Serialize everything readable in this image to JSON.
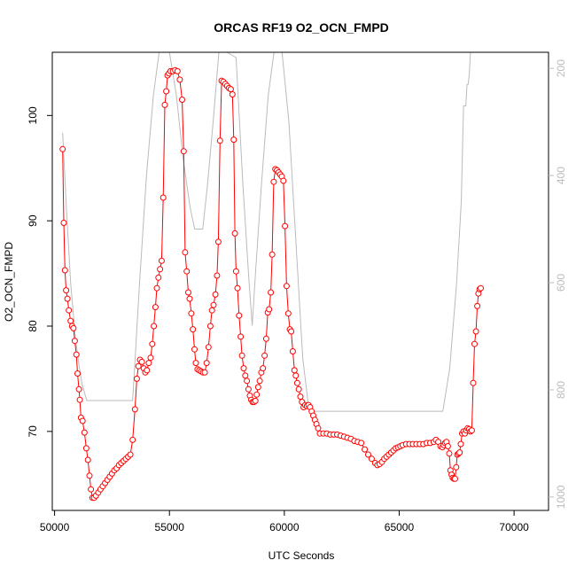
{
  "chart_data": {
    "type": "line",
    "title": "ORCAS RF19 O2_OCN_FMPD",
    "xlabel": "UTC Seconds",
    "ylabel": "O2_OCN_FMPD",
    "xlim": [
      49900,
      71500
    ],
    "ylim": [
      62.5,
      106
    ],
    "y2lim": [
      1025,
      170
    ],
    "x_ticks": [
      50000,
      55000,
      60000,
      65000,
      70000
    ],
    "y_ticks": [
      70,
      80,
      90,
      100
    ],
    "y2_ticks": [
      200,
      400,
      600,
      800,
      1000
    ],
    "colors": {
      "primary": "#ff0000",
      "secondary": "#bbbbbb",
      "axis": "#000000"
    },
    "series": [
      {
        "role": "primary",
        "points": [
          [
            50350,
            96.8
          ],
          [
            50400,
            89.8
          ],
          [
            50450,
            85.3
          ],
          [
            50500,
            83.4
          ],
          [
            50560,
            82.6
          ],
          [
            50620,
            81.5
          ],
          [
            50700,
            80.5
          ],
          [
            50760,
            80.0
          ],
          [
            50820,
            79.8
          ],
          [
            50880,
            78.6
          ],
          [
            50950,
            77.3
          ],
          [
            51000,
            75.5
          ],
          [
            51060,
            74.0
          ],
          [
            51100,
            73.0
          ],
          [
            51150,
            71.3
          ],
          [
            51220,
            71.0
          ],
          [
            51300,
            69.9
          ],
          [
            51380,
            68.4
          ],
          [
            51450,
            67.3
          ],
          [
            51520,
            65.8
          ],
          [
            51580,
            64.5
          ],
          [
            51650,
            63.7
          ],
          [
            51720,
            63.7
          ],
          [
            51800,
            63.9
          ],
          [
            51900,
            64.2
          ],
          [
            52000,
            64.5
          ],
          [
            52100,
            64.8
          ],
          [
            52200,
            65.1
          ],
          [
            52300,
            65.4
          ],
          [
            52400,
            65.7
          ],
          [
            52500,
            66.0
          ],
          [
            52600,
            66.3
          ],
          [
            52700,
            66.5
          ],
          [
            52800,
            66.8
          ],
          [
            52900,
            67.0
          ],
          [
            53000,
            67.2
          ],
          [
            53100,
            67.4
          ],
          [
            53200,
            67.6
          ],
          [
            53300,
            67.8
          ],
          [
            53400,
            69.2
          ],
          [
            53500,
            72.1
          ],
          [
            53580,
            75.0
          ],
          [
            53650,
            76.2
          ],
          [
            53720,
            76.8
          ],
          [
            53800,
            76.6
          ],
          [
            53880,
            76.0
          ],
          [
            53950,
            75.6
          ],
          [
            54020,
            75.8
          ],
          [
            54100,
            76.5
          ],
          [
            54180,
            77.0
          ],
          [
            54250,
            78.3
          ],
          [
            54320,
            80.0
          ],
          [
            54390,
            81.8
          ],
          [
            54450,
            83.6
          ],
          [
            54520,
            84.6
          ],
          [
            54590,
            85.4
          ],
          [
            54660,
            86.2
          ],
          [
            54730,
            92.2
          ],
          [
            54800,
            101.0
          ],
          [
            54860,
            102.3
          ],
          [
            54920,
            103.8
          ],
          [
            54980,
            104.0
          ],
          [
            55050,
            104.2
          ],
          [
            55150,
            104.2
          ],
          [
            55250,
            104.3
          ],
          [
            55350,
            104.2
          ],
          [
            55450,
            103.4
          ],
          [
            55550,
            101.5
          ],
          [
            55620,
            96.6
          ],
          [
            55680,
            87.0
          ],
          [
            55750,
            85.2
          ],
          [
            55820,
            83.2
          ],
          [
            55880,
            82.6
          ],
          [
            55950,
            81.2
          ],
          [
            56020,
            79.7
          ],
          [
            56090,
            77.8
          ],
          [
            56150,
            76.5
          ],
          [
            56220,
            75.9
          ],
          [
            56300,
            75.8
          ],
          [
            56380,
            75.7
          ],
          [
            56460,
            75.6
          ],
          [
            56540,
            75.6
          ],
          [
            56620,
            76.5
          ],
          [
            56700,
            78.0
          ],
          [
            56780,
            80.0
          ],
          [
            56850,
            81.5
          ],
          [
            56920,
            82.0
          ],
          [
            57000,
            83.0
          ],
          [
            57070,
            84.8
          ],
          [
            57130,
            88.0
          ],
          [
            57200,
            97.6
          ],
          [
            57270,
            103.3
          ],
          [
            57350,
            103.2
          ],
          [
            57430,
            103.0
          ],
          [
            57510,
            102.8
          ],
          [
            57590,
            102.6
          ],
          [
            57670,
            102.5
          ],
          [
            57740,
            102.0
          ],
          [
            57800,
            97.7
          ],
          [
            57850,
            88.8
          ],
          [
            57900,
            85.2
          ],
          [
            57960,
            83.6
          ],
          [
            58030,
            81.0
          ],
          [
            58100,
            79.0
          ],
          [
            58160,
            77.2
          ],
          [
            58230,
            76.0
          ],
          [
            58300,
            75.3
          ],
          [
            58370,
            74.8
          ],
          [
            58440,
            74.0
          ],
          [
            58500,
            73.4
          ],
          [
            58560,
            73.0
          ],
          [
            58620,
            72.8
          ],
          [
            58680,
            72.8
          ],
          [
            58740,
            72.9
          ],
          [
            58800,
            73.5
          ],
          [
            58860,
            74.2
          ],
          [
            58930,
            74.8
          ],
          [
            59000,
            75.6
          ],
          [
            59070,
            76.0
          ],
          [
            59140,
            77.2
          ],
          [
            59210,
            78.8
          ],
          [
            59280,
            81.3
          ],
          [
            59340,
            81.6
          ],
          [
            59410,
            83.2
          ],
          [
            59470,
            86.8
          ],
          [
            59540,
            93.7
          ],
          [
            59610,
            94.9
          ],
          [
            59680,
            94.8
          ],
          [
            59750,
            94.6
          ],
          [
            59820,
            94.4
          ],
          [
            59890,
            94.2
          ],
          [
            59960,
            93.8
          ],
          [
            60030,
            89.5
          ],
          [
            60100,
            83.8
          ],
          [
            60170,
            81.2
          ],
          [
            60240,
            79.7
          ],
          [
            60300,
            79.5
          ],
          [
            60370,
            77.6
          ],
          [
            60440,
            75.8
          ],
          [
            60500,
            75.3
          ],
          [
            60560,
            74.6
          ],
          [
            60630,
            74.0
          ],
          [
            60700,
            73.3
          ],
          [
            60770,
            72.8
          ],
          [
            60840,
            72.3
          ],
          [
            60910,
            72.5
          ],
          [
            60980,
            72.4
          ],
          [
            61050,
            72.5
          ],
          [
            61120,
            72.3
          ],
          [
            61190,
            71.9
          ],
          [
            61260,
            71.5
          ],
          [
            61330,
            71.1
          ],
          [
            61400,
            70.7
          ],
          [
            61470,
            70.3
          ],
          [
            61550,
            69.8
          ],
          [
            61700,
            69.8
          ],
          [
            61850,
            69.8
          ],
          [
            62000,
            69.7
          ],
          [
            62150,
            69.7
          ],
          [
            62300,
            69.7
          ],
          [
            62450,
            69.6
          ],
          [
            62600,
            69.5
          ],
          [
            62750,
            69.4
          ],
          [
            62900,
            69.3
          ],
          [
            63050,
            69.1
          ],
          [
            63200,
            69.0
          ],
          [
            63350,
            68.9
          ],
          [
            63500,
            68.3
          ],
          [
            63650,
            67.8
          ],
          [
            63800,
            67.4
          ],
          [
            63950,
            67.0
          ],
          [
            64050,
            66.8
          ],
          [
            64150,
            66.9
          ],
          [
            64250,
            67.1
          ],
          [
            64350,
            67.4
          ],
          [
            64450,
            67.6
          ],
          [
            64550,
            67.8
          ],
          [
            64650,
            68.0
          ],
          [
            64750,
            68.2
          ],
          [
            64850,
            68.4
          ],
          [
            64950,
            68.5
          ],
          [
            65050,
            68.6
          ],
          [
            65150,
            68.7
          ],
          [
            65300,
            68.8
          ],
          [
            65450,
            68.8
          ],
          [
            65600,
            68.8
          ],
          [
            65750,
            68.8
          ],
          [
            65900,
            68.8
          ],
          [
            66050,
            68.8
          ],
          [
            66200,
            68.9
          ],
          [
            66350,
            68.9
          ],
          [
            66500,
            69.0
          ],
          [
            66600,
            69.2
          ],
          [
            66700,
            69.0
          ],
          [
            66800,
            68.6
          ],
          [
            66880,
            68.5
          ],
          [
            66940,
            68.7
          ],
          [
            67000,
            68.9
          ],
          [
            67060,
            69.0
          ],
          [
            67120,
            68.6
          ],
          [
            67180,
            67.9
          ],
          [
            67230,
            66.3
          ],
          [
            67280,
            65.9
          ],
          [
            67330,
            65.6
          ],
          [
            67380,
            65.5
          ],
          [
            67430,
            65.5
          ],
          [
            67480,
            66.6
          ],
          [
            67530,
            67.8
          ],
          [
            67580,
            67.9
          ],
          [
            67630,
            68.0
          ],
          [
            67680,
            68.8
          ],
          [
            67740,
            69.8
          ],
          [
            67800,
            70.0
          ],
          [
            67860,
            69.8
          ],
          [
            67920,
            70.1
          ],
          [
            67980,
            70.3
          ],
          [
            68040,
            70.2
          ],
          [
            68100,
            70.0
          ],
          [
            68160,
            70.1
          ],
          [
            68220,
            74.6
          ],
          [
            68280,
            78.3
          ],
          [
            68340,
            79.5
          ],
          [
            68400,
            81.9
          ],
          [
            68450,
            83.1
          ],
          [
            68500,
            83.5
          ],
          [
            68550,
            83.6
          ]
        ]
      },
      {
        "role": "secondary",
        "points": [
          [
            50350,
            320
          ],
          [
            50500,
            450
          ],
          [
            50700,
            600
          ],
          [
            50900,
            700
          ],
          [
            51050,
            750
          ],
          [
            51200,
            790
          ],
          [
            51400,
            820
          ],
          [
            53400,
            820
          ],
          [
            53700,
            600
          ],
          [
            54000,
            400
          ],
          [
            54300,
            250
          ],
          [
            54550,
            150
          ],
          [
            54700,
            110
          ],
          [
            55000,
            150
          ],
          [
            55300,
            250
          ],
          [
            55600,
            370
          ],
          [
            55900,
            460
          ],
          [
            56100,
            500
          ],
          [
            56450,
            500
          ],
          [
            56650,
            420
          ],
          [
            56900,
            300
          ],
          [
            57150,
            150
          ],
          [
            57500,
            100
          ],
          [
            57900,
            180
          ],
          [
            58200,
            420
          ],
          [
            58450,
            590
          ],
          [
            58600,
            680
          ],
          [
            58750,
            580
          ],
          [
            59000,
            420
          ],
          [
            59300,
            250
          ],
          [
            59550,
            110
          ],
          [
            59900,
            90
          ],
          [
            60200,
            300
          ],
          [
            60500,
            520
          ],
          [
            60800,
            740
          ],
          [
            61050,
            830
          ],
          [
            61300,
            840
          ],
          [
            66900,
            840
          ],
          [
            67200,
            760
          ],
          [
            67500,
            600
          ],
          [
            67700,
            450
          ],
          [
            67800,
            270
          ],
          [
            67900,
            270
          ],
          [
            67950,
            230
          ],
          [
            68000,
            230
          ],
          [
            68050,
            210
          ],
          [
            68100,
            150
          ],
          [
            68200,
            100
          ]
        ]
      }
    ]
  }
}
